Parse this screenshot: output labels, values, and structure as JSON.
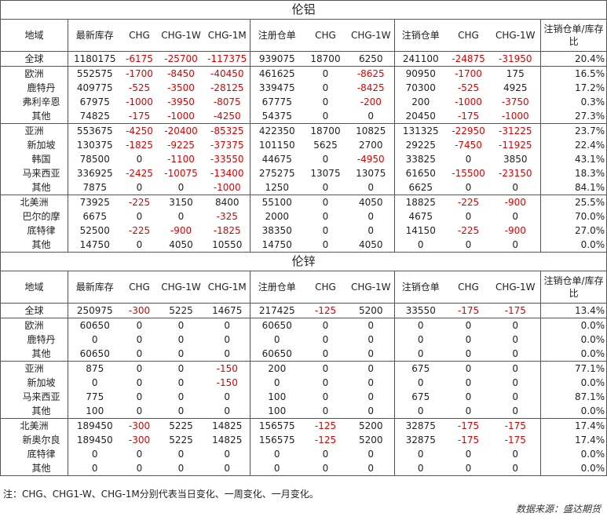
{
  "headers": [
    "地域",
    "最新库存",
    "CHG",
    "CHG-1W",
    "CHG-1M",
    "注册仓单",
    "CHG",
    "CHG-1W",
    "注销仓单",
    "CHG",
    "CHG-1W",
    "注销仓单/库存比"
  ],
  "tables": [
    {
      "title": "伦铝",
      "rows": [
        {
          "region": "全球",
          "level": 0,
          "values": [
            "1180175",
            "-6175",
            "-25700",
            "-117375",
            "939075",
            "18700",
            "6250",
            "241100",
            "-24875",
            "-31950",
            "20.4%"
          ]
        },
        {
          "region": "欧洲",
          "level": 0,
          "values": [
            "552575",
            "-1700",
            "-8450",
            "-40450",
            "461625",
            "0",
            "-8625",
            "90950",
            "-1700",
            "175",
            "16.5%"
          ]
        },
        {
          "region": "鹿特丹",
          "level": 1,
          "values": [
            "409775",
            "-525",
            "-3500",
            "-28125",
            "339475",
            "0",
            "-8425",
            "70300",
            "-525",
            "4925",
            "17.2%"
          ]
        },
        {
          "region": "弗利辛恩",
          "level": 1,
          "values": [
            "67975",
            "-1000",
            "-3950",
            "-8075",
            "67775",
            "0",
            "-200",
            "200",
            "-1000",
            "-3750",
            "0.3%"
          ]
        },
        {
          "region": "其他",
          "level": 1,
          "values": [
            "74825",
            "-175",
            "-1000",
            "-4250",
            "54375",
            "0",
            "0",
            "20450",
            "-175",
            "-1000",
            "27.3%"
          ]
        },
        {
          "region": "亚洲",
          "level": 0,
          "values": [
            "553675",
            "-4250",
            "-20400",
            "-85325",
            "422350",
            "18700",
            "10825",
            "131325",
            "-22950",
            "-31225",
            "23.7%"
          ]
        },
        {
          "region": "新加坡",
          "level": 1,
          "values": [
            "130375",
            "-1825",
            "-9225",
            "-37375",
            "101150",
            "5625",
            "2700",
            "29225",
            "-7450",
            "-11925",
            "22.4%"
          ]
        },
        {
          "region": "韩国",
          "level": 1,
          "values": [
            "78500",
            "0",
            "-1100",
            "-33550",
            "44675",
            "0",
            "-4950",
            "33825",
            "0",
            "3850",
            "43.1%"
          ]
        },
        {
          "region": "马来西亚",
          "level": 1,
          "values": [
            "336925",
            "-2425",
            "-10075",
            "-13400",
            "275275",
            "13075",
            "13075",
            "61650",
            "-15500",
            "-23150",
            "18.3%"
          ]
        },
        {
          "region": "其他",
          "level": 1,
          "values": [
            "7875",
            "0",
            "0",
            "-1000",
            "1250",
            "0",
            "0",
            "6625",
            "0",
            "0",
            "84.1%"
          ]
        },
        {
          "region": "北美洲",
          "level": 0,
          "values": [
            "73925",
            "-225",
            "3150",
            "8400",
            "55100",
            "0",
            "4050",
            "18825",
            "-225",
            "-900",
            "25.5%"
          ]
        },
        {
          "region": "巴尔的摩",
          "level": 1,
          "values": [
            "6675",
            "0",
            "0",
            "-325",
            "2000",
            "0",
            "0",
            "4675",
            "0",
            "0",
            "70.0%"
          ]
        },
        {
          "region": "底特律",
          "level": 1,
          "values": [
            "52500",
            "-225",
            "-900",
            "-1825",
            "38350",
            "0",
            "0",
            "14150",
            "-225",
            "-900",
            "27.0%"
          ]
        },
        {
          "region": "其他",
          "level": 1,
          "values": [
            "14750",
            "0",
            "4050",
            "10550",
            "14750",
            "0",
            "4050",
            "0",
            "0",
            "0",
            "0.0%"
          ]
        }
      ]
    },
    {
      "title": "伦锌",
      "rows": [
        {
          "region": "全球",
          "level": 0,
          "values": [
            "250975",
            "-300",
            "5225",
            "14675",
            "217425",
            "-125",
            "5200",
            "33550",
            "-175",
            "-175",
            "13.4%"
          ]
        },
        {
          "region": "欧洲",
          "level": 0,
          "values": [
            "60650",
            "0",
            "0",
            "0",
            "60650",
            "0",
            "0",
            "0",
            "0",
            "0",
            "0.0%"
          ]
        },
        {
          "region": "鹿特丹",
          "level": 1,
          "values": [
            "0",
            "0",
            "0",
            "0",
            "0",
            "0",
            "0",
            "0",
            "0",
            "0",
            "0.0%"
          ]
        },
        {
          "region": "其他",
          "level": 1,
          "values": [
            "60650",
            "0",
            "0",
            "0",
            "60650",
            "0",
            "0",
            "0",
            "0",
            "0",
            "0.0%"
          ]
        },
        {
          "region": "亚洲",
          "level": 0,
          "values": [
            "875",
            "0",
            "0",
            "-150",
            "200",
            "0",
            "0",
            "675",
            "0",
            "0",
            "77.1%"
          ]
        },
        {
          "region": "新加坡",
          "level": 1,
          "values": [
            "0",
            "0",
            "0",
            "-150",
            "0",
            "0",
            "0",
            "0",
            "0",
            "0",
            "0.0%"
          ]
        },
        {
          "region": "马来西亚",
          "level": 1,
          "values": [
            "775",
            "0",
            "0",
            "0",
            "100",
            "0",
            "0",
            "675",
            "0",
            "0",
            "87.1%"
          ]
        },
        {
          "region": "其他",
          "level": 1,
          "values": [
            "100",
            "0",
            "0",
            "0",
            "100",
            "0",
            "0",
            "0",
            "0",
            "0",
            "0.0%"
          ]
        },
        {
          "region": "北美洲",
          "level": 0,
          "values": [
            "189450",
            "-300",
            "5225",
            "14825",
            "156575",
            "-125",
            "5200",
            "32875",
            "-175",
            "-175",
            "17.4%"
          ]
        },
        {
          "region": "新奥尔良",
          "level": 1,
          "values": [
            "189450",
            "-300",
            "5225",
            "14825",
            "156575",
            "-125",
            "5200",
            "32875",
            "-175",
            "-175",
            "17.4%"
          ]
        },
        {
          "region": "底特律",
          "level": 1,
          "values": [
            "0",
            "0",
            "0",
            "0",
            "0",
            "0",
            "0",
            "0",
            "0",
            "0",
            "0.0%"
          ]
        },
        {
          "region": "其他",
          "level": 1,
          "values": [
            "0",
            "0",
            "0",
            "0",
            "0",
            "0",
            "0",
            "0",
            "0",
            "0",
            "0.0%"
          ]
        }
      ]
    }
  ],
  "footnote": "注：CHG、CHG1-W、CHG-1M分别代表当日变化、一周变化、一月变化。",
  "source": "数据来源：盛达期货",
  "colors": {
    "negative": "#e00000",
    "text": "#222222",
    "border": "#555555"
  }
}
